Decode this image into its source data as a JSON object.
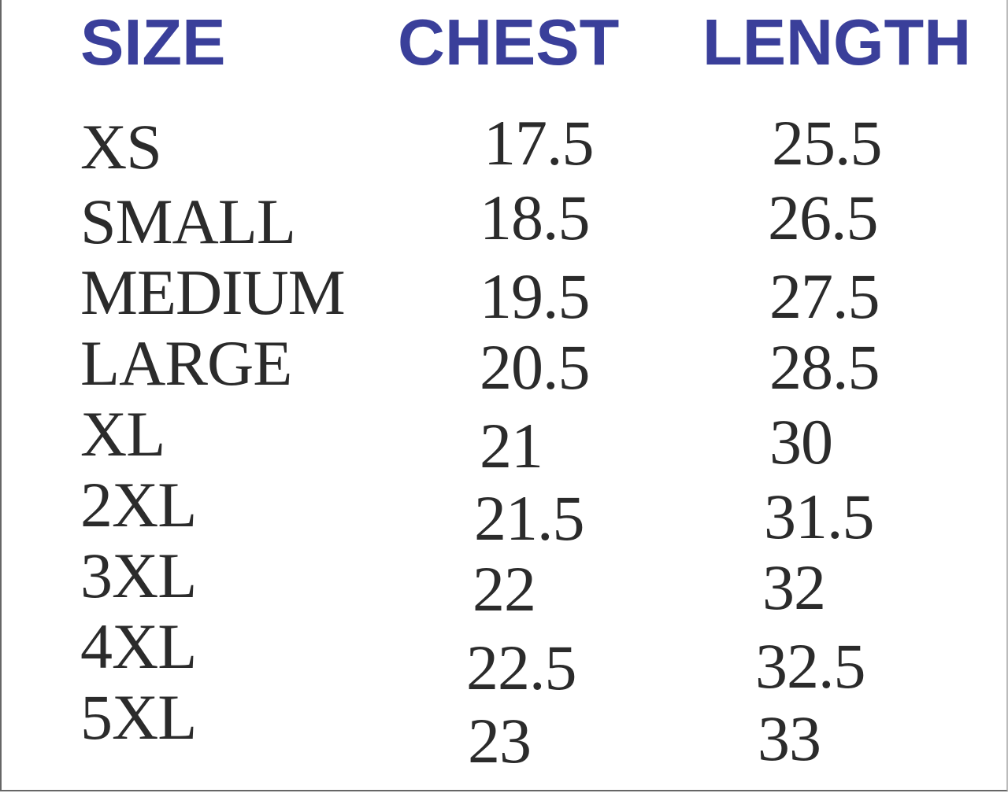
{
  "headers": {
    "size": "SIZE",
    "chest": "CHEST",
    "length": "LENGTH"
  },
  "header_color": "#3a3f9a",
  "rows": [
    {
      "size": "XS",
      "chest": "17.5",
      "length": "25.5"
    },
    {
      "size": "SMALL",
      "chest": "18.5",
      "length": "26.5"
    },
    {
      "size": "MEDIUM",
      "chest": "19.5",
      "length": "27.5"
    },
    {
      "size": "LARGE",
      "chest": "20.5",
      "length": "28.5"
    },
    {
      "size": "XL",
      "chest": "21",
      "length": "30"
    },
    {
      "size": "2XL",
      "chest": "21.5",
      "length": "31.5"
    },
    {
      "size": "3XL",
      "chest": "22",
      "length": "32"
    },
    {
      "size": "4XL",
      "chest": "22.5",
      "length": "32.5"
    },
    {
      "size": "5XL",
      "chest": "23",
      "length": "33"
    }
  ]
}
